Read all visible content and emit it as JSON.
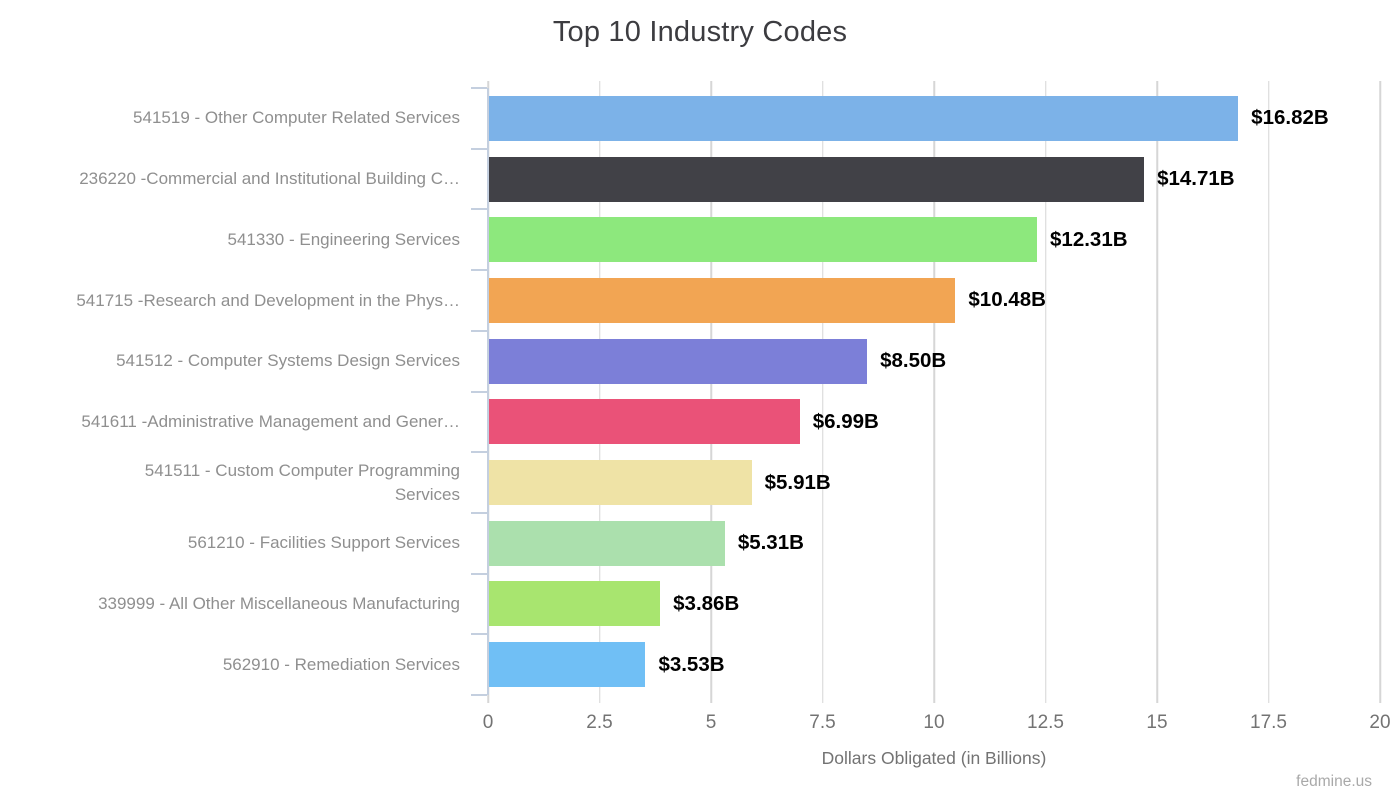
{
  "chart_data": {
    "type": "bar",
    "orientation": "horizontal",
    "title": "Top 10 Industry Codes",
    "xlabel": "Dollars Obligated (in Billions)",
    "xlim": [
      0,
      20
    ],
    "xticks": [
      0,
      2.5,
      5,
      7.5,
      10,
      12.5,
      15,
      17.5,
      20
    ],
    "xtick_labels": [
      "0",
      "2.5",
      "5",
      "7.5",
      "10",
      "12.5",
      "15",
      "17.5",
      "20"
    ],
    "grid": "vertical",
    "legend": "none",
    "categories": [
      "541519 - Other Computer Related Services",
      "236220 -Commercial and Institutional Building C…",
      "541330 - Engineering Services",
      "541715 -Research and Development in the Phys…",
      "541512 - Computer Systems Design Services",
      "541611 -Administrative Management and Gener…",
      "541511 - Custom Computer Programming\nServices",
      "561210 - Facilities Support Services",
      "339999 - All Other Miscellaneous Manufacturing",
      "562910 - Remediation Services"
    ],
    "values": [
      16.82,
      14.71,
      12.31,
      10.48,
      8.5,
      6.99,
      5.91,
      5.31,
      3.86,
      3.53
    ],
    "value_labels": [
      "$16.82B",
      "$14.71B",
      "$12.31B",
      "$10.48B",
      "$8.50B",
      "$6.99B",
      "$5.91B",
      "$5.31B",
      "$3.86B",
      "$3.53B"
    ],
    "bar_colors": [
      "#7cb2e8",
      "#414147",
      "#8de87d",
      "#f2a553",
      "#7c7fd8",
      "#ea5278",
      "#efe3a6",
      "#abe0ad",
      "#a8e56f",
      "#70bff5"
    ],
    "axis_color": "#c4cfdf",
    "gridline_color": "#d6d6d6",
    "watermark": "fedmine.us"
  }
}
